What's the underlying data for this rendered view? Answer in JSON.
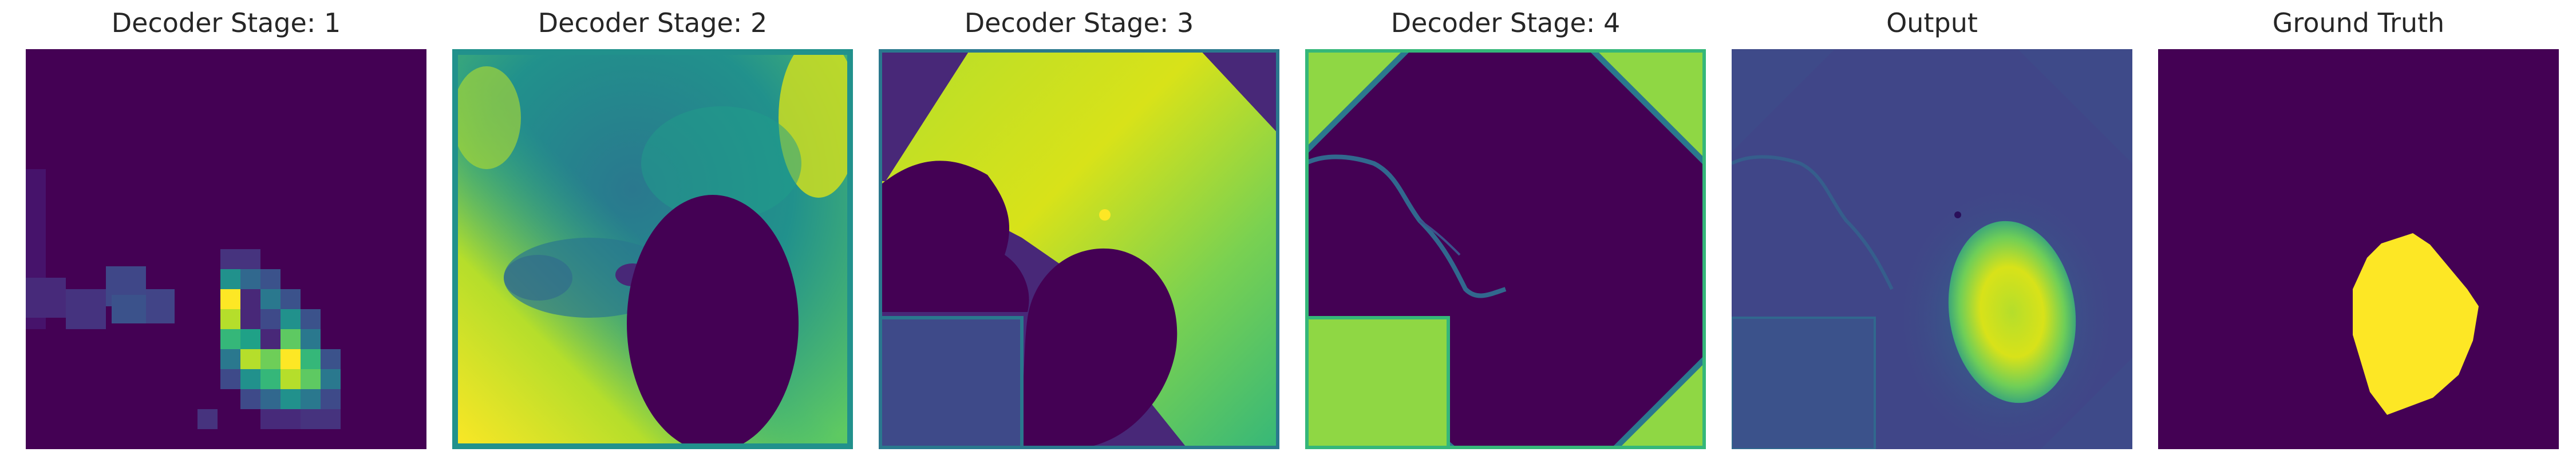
{
  "panels": [
    {
      "title": "Decoder Stage: 1"
    },
    {
      "title": "Decoder Stage: 2"
    },
    {
      "title": "Decoder Stage: 3"
    },
    {
      "title": "Decoder Stage: 4"
    },
    {
      "title": "Output"
    },
    {
      "title": "Ground Truth"
    }
  ],
  "colormap": {
    "low": "#440154",
    "mid_low": "#3b528b",
    "mid": "#21918c",
    "mid_high": "#5ec962",
    "high": "#fde725"
  }
}
